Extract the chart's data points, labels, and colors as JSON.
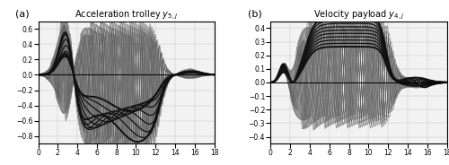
{
  "title_a": "Acceleration trolley $y_{5,j}$",
  "title_b": "Velocity payload $y_{4,j}$",
  "label_a": "(a)",
  "label_b": "(b)",
  "xlim": [
    0,
    18
  ],
  "ylim_a": [
    -0.9,
    0.7
  ],
  "ylim_b": [
    -0.45,
    0.45
  ],
  "yticks_a": [
    -0.8,
    -0.6,
    -0.4,
    -0.2,
    0.0,
    0.2,
    0.4,
    0.6
  ],
  "yticks_b": [
    -0.4,
    -0.3,
    -0.2,
    -0.1,
    0.0,
    0.1,
    0.2,
    0.3,
    0.4
  ],
  "xticks": [
    0,
    2,
    4,
    6,
    8,
    10,
    12,
    14,
    16,
    18
  ],
  "n_thick": 10,
  "n_thin": 20,
  "osc_freq_a": 5.5,
  "osc_freq_b": 4.8
}
